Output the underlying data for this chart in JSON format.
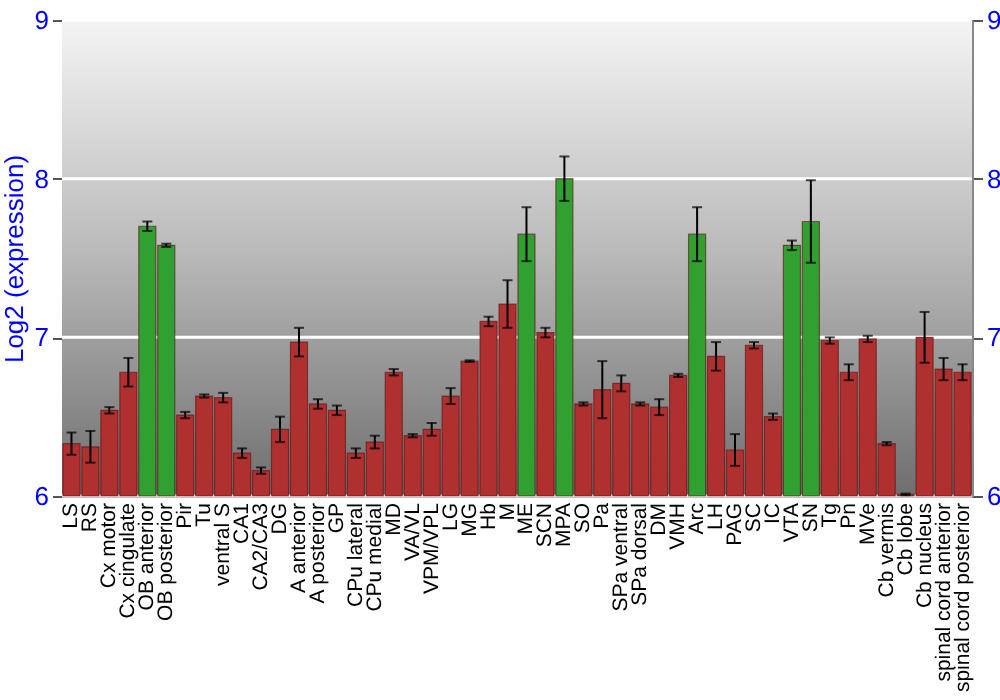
{
  "chart_data": {
    "type": "bar",
    "ylabel": "Log2 (expression)",
    "categories": [
      "LS",
      "RS",
      "Cx motor",
      "Cx cingulate",
      "OB anterior",
      "OB posterior",
      "Pir",
      "Tu",
      "ventral S",
      "CA1",
      "CA2/CA3",
      "DG",
      "A anterior",
      "A posterior",
      "GP",
      "CPu lateral",
      "CPu medial",
      "MD",
      "VA/VL",
      "VPM/VPL",
      "LG",
      "MG",
      "Hb",
      "M",
      "ME",
      "SCN",
      "MPA",
      "SO",
      "Pa",
      "SPa ventral",
      "SPa dorsal",
      "DM",
      "VMH",
      "Arc",
      "LH",
      "PAG",
      "SC",
      "IC",
      "VTA",
      "SN",
      "Tg",
      "Pn",
      "MVe",
      "Cb vermis",
      "Cb lobe",
      "Cb nucleus",
      "spinal cord anterior",
      "spinal cord posterior"
    ],
    "values": [
      6.33,
      6.31,
      6.54,
      6.78,
      7.7,
      7.58,
      6.51,
      6.63,
      6.62,
      6.27,
      6.16,
      6.42,
      6.97,
      6.58,
      6.54,
      6.27,
      6.34,
      6.78,
      6.38,
      6.42,
      6.63,
      6.85,
      7.1,
      7.21,
      7.65,
      7.03,
      8.0,
      6.58,
      6.67,
      6.71,
      6.58,
      6.56,
      6.76,
      7.65,
      6.88,
      6.29,
      6.95,
      6.5,
      7.58,
      7.73,
      6.98,
      6.78,
      6.99,
      6.33,
      6.01,
      7.0,
      6.8,
      6.78
    ],
    "errors": [
      0.07,
      0.1,
      0.02,
      0.09,
      0.03,
      0.01,
      0.02,
      0.01,
      0.03,
      0.03,
      0.02,
      0.08,
      0.09,
      0.03,
      0.03,
      0.03,
      0.04,
      0.02,
      0.01,
      0.04,
      0.05,
      0.005,
      0.03,
      0.15,
      0.17,
      0.03,
      0.14,
      0.01,
      0.18,
      0.05,
      0.01,
      0.05,
      0.01,
      0.17,
      0.09,
      0.1,
      0.02,
      0.02,
      0.03,
      0.26,
      0.02,
      0.05,
      0.02,
      0.01,
      0.005,
      0.16,
      0.07,
      0.05
    ],
    "colors": [
      "#b03030",
      "#b03030",
      "#b03030",
      "#b03030",
      "#30a030",
      "#30a030",
      "#b03030",
      "#b03030",
      "#b03030",
      "#b03030",
      "#b03030",
      "#b03030",
      "#b03030",
      "#b03030",
      "#b03030",
      "#b03030",
      "#b03030",
      "#b03030",
      "#b03030",
      "#b03030",
      "#b03030",
      "#b03030",
      "#b03030",
      "#b03030",
      "#30a030",
      "#b03030",
      "#30a030",
      "#b03030",
      "#b03030",
      "#b03030",
      "#b03030",
      "#b03030",
      "#b03030",
      "#30a030",
      "#b03030",
      "#b03030",
      "#b03030",
      "#b03030",
      "#30a030",
      "#30a030",
      "#b03030",
      "#b03030",
      "#b03030",
      "#b03030",
      "#b03030",
      "#b03030",
      "#b03030",
      "#b03030"
    ],
    "ylim": [
      6,
      9
    ],
    "yticks": [
      6,
      7,
      8,
      9
    ],
    "y2lim": [
      6,
      9
    ],
    "y2ticks": [
      6,
      7,
      8,
      9
    ],
    "grid": "y"
  }
}
